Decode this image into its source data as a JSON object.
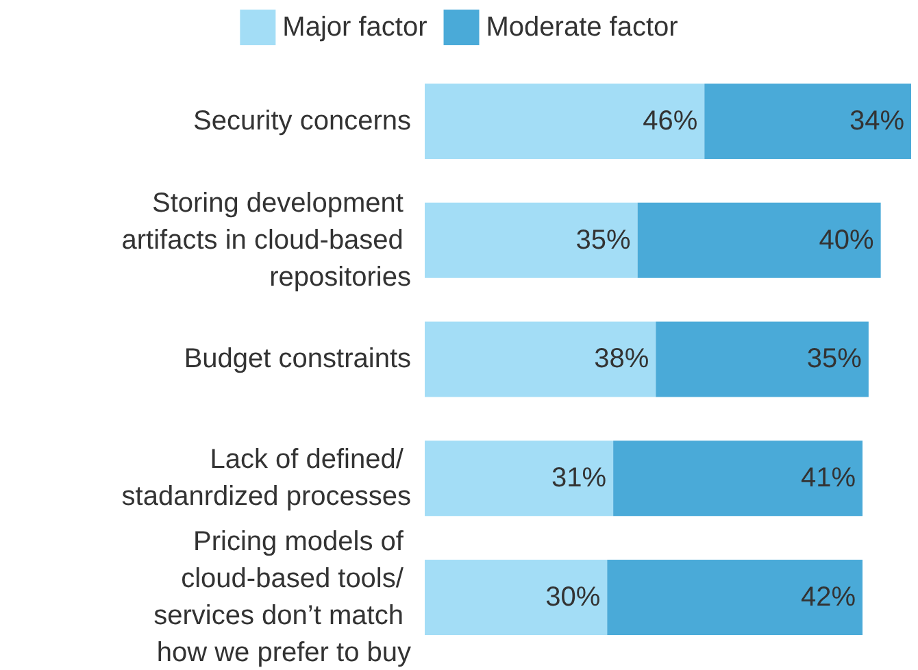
{
  "chart_data": {
    "type": "bar",
    "orientation": "horizontal",
    "stacked": true,
    "legend": "top",
    "categories": [
      "Security concerns",
      "Storing development artifacts in cloud-based repositories",
      "Budget constraints",
      "Lack of defined/ stadanrdized processes",
      "Pricing models of cloud-based tools/ services don’t match how we prefer to buy"
    ],
    "series": [
      {
        "name": "Major factor",
        "color": "#a3ddf6",
        "values": [
          46,
          35,
          38,
          31,
          30
        ],
        "value_labels": [
          "46%",
          "35%",
          "38%",
          "31%",
          "30%"
        ]
      },
      {
        "name": "Moderate factor",
        "color": "#4aaad8",
        "values": [
          34,
          40,
          35,
          41,
          42
        ],
        "value_labels": [
          "34%",
          "40%",
          "35%",
          "41%",
          "42%"
        ]
      }
    ]
  }
}
